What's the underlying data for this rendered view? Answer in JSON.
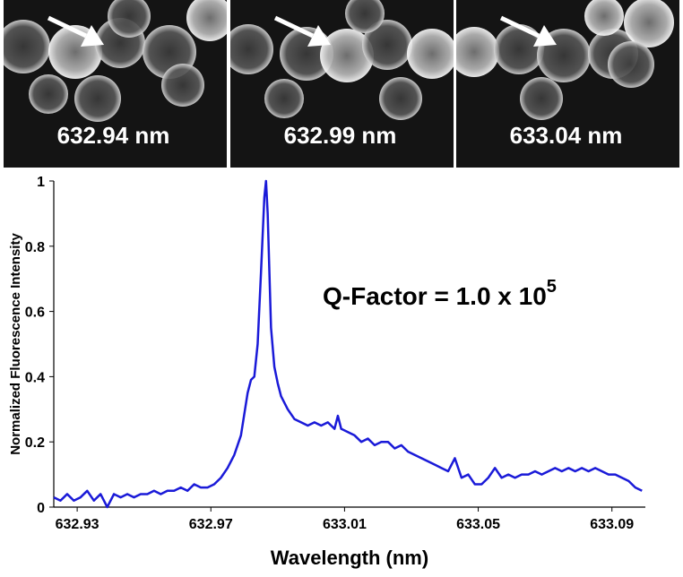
{
  "image_labels": [
    "632.94 nm",
    "632.99 nm",
    "633.04 nm"
  ],
  "chart_data": {
    "type": "line",
    "xlabel": "Wavelength (nm)",
    "ylabel": "Normalized Fluorescence Intensity",
    "annotation": {
      "text": "Q-Factor = 1.0 x 10",
      "superscript": "5"
    },
    "xlim": [
      632.923,
      633.1
    ],
    "xticks": [
      632.93,
      632.97,
      633.01,
      633.05,
      633.09
    ],
    "ylim": [
      0,
      1
    ],
    "yticks": [
      0,
      0.2,
      0.4,
      0.6,
      0.8,
      1
    ],
    "grid": false,
    "x": [
      632.923,
      632.925,
      632.927,
      632.929,
      632.931,
      632.933,
      632.935,
      632.937,
      632.939,
      632.941,
      632.943,
      632.945,
      632.947,
      632.949,
      632.951,
      632.953,
      632.955,
      632.957,
      632.959,
      632.961,
      632.963,
      632.965,
      632.967,
      632.969,
      632.971,
      632.973,
      632.975,
      632.977,
      632.979,
      632.981,
      632.982,
      632.983,
      632.984,
      632.985,
      632.986,
      632.9865,
      632.987,
      632.988,
      632.989,
      632.99,
      632.991,
      632.993,
      632.995,
      632.997,
      632.999,
      633.001,
      633.003,
      633.005,
      633.007,
      633.008,
      633.009,
      633.011,
      633.013,
      633.015,
      633.017,
      633.019,
      633.021,
      633.023,
      633.025,
      633.027,
      633.029,
      633.031,
      633.033,
      633.035,
      633.037,
      633.039,
      633.041,
      633.043,
      633.045,
      633.047,
      633.049,
      633.051,
      633.053,
      633.055,
      633.057,
      633.059,
      633.061,
      633.063,
      633.065,
      633.067,
      633.069,
      633.071,
      633.073,
      633.075,
      633.077,
      633.079,
      633.081,
      633.083,
      633.085,
      633.087,
      633.089,
      633.091,
      633.093,
      633.095,
      633.097,
      633.099
    ],
    "series": [
      {
        "color": "#1a1ad8",
        "values": [
          0.03,
          0.02,
          0.04,
          0.02,
          0.03,
          0.05,
          0.02,
          0.04,
          0.0,
          0.04,
          0.03,
          0.04,
          0.03,
          0.04,
          0.04,
          0.05,
          0.04,
          0.05,
          0.05,
          0.06,
          0.05,
          0.07,
          0.06,
          0.06,
          0.07,
          0.09,
          0.12,
          0.16,
          0.22,
          0.35,
          0.39,
          0.4,
          0.5,
          0.72,
          0.95,
          1.0,
          0.9,
          0.55,
          0.43,
          0.38,
          0.34,
          0.3,
          0.27,
          0.26,
          0.25,
          0.26,
          0.25,
          0.26,
          0.24,
          0.28,
          0.24,
          0.23,
          0.22,
          0.2,
          0.21,
          0.19,
          0.2,
          0.2,
          0.18,
          0.19,
          0.17,
          0.16,
          0.15,
          0.14,
          0.13,
          0.12,
          0.11,
          0.15,
          0.09,
          0.1,
          0.07,
          0.07,
          0.09,
          0.12,
          0.09,
          0.1,
          0.09,
          0.1,
          0.1,
          0.11,
          0.1,
          0.11,
          0.12,
          0.11,
          0.12,
          0.11,
          0.12,
          0.11,
          0.12,
          0.11,
          0.1,
          0.1,
          0.09,
          0.08,
          0.06,
          0.05
        ]
      }
    ]
  }
}
